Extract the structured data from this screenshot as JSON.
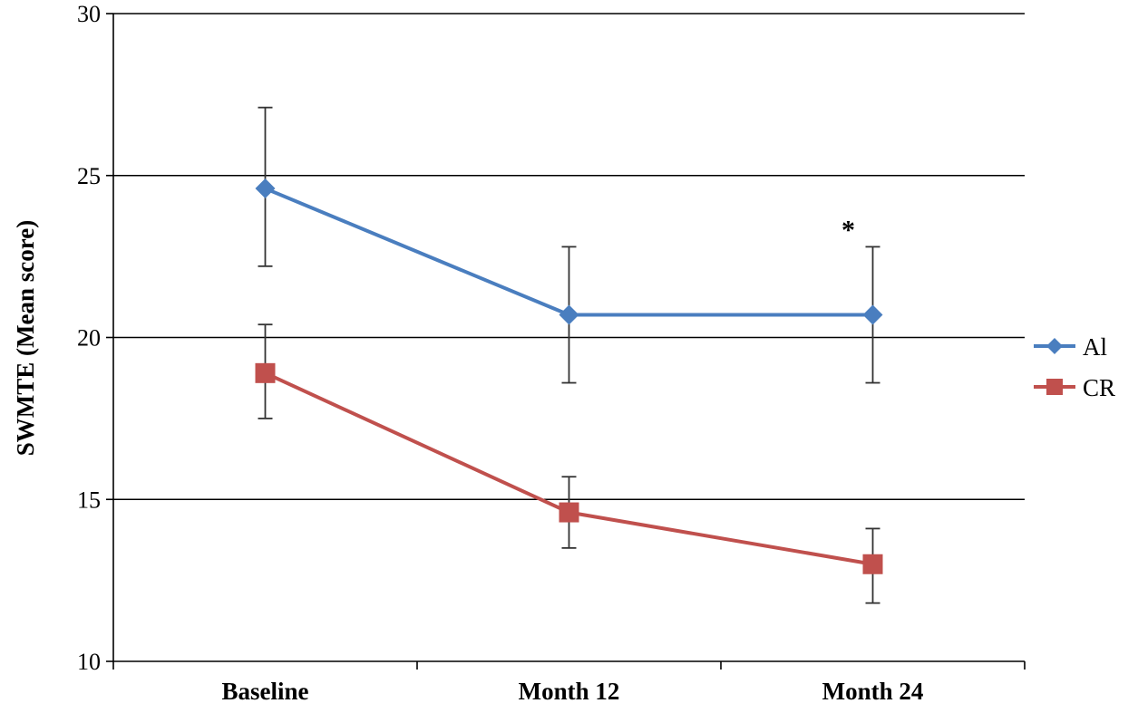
{
  "chart_data": {
    "type": "line",
    "categories": [
      "Baseline",
      "Month 12",
      "Month 24"
    ],
    "ylabel": "SWMTE (Mean score)",
    "ylim": [
      10,
      30
    ],
    "yticks": [
      10,
      15,
      20,
      25,
      30
    ],
    "grid": true,
    "legend_position": "right",
    "series": [
      {
        "name": "Al",
        "color": "#4a7ebf",
        "marker": "diamond",
        "values": [
          24.6,
          20.7,
          20.7
        ],
        "error_upper": [
          27.1,
          22.8,
          22.8
        ],
        "error_lower": [
          22.2,
          18.6,
          18.6
        ]
      },
      {
        "name": "CR",
        "color": "#c0504d",
        "marker": "square",
        "values": [
          18.9,
          14.6,
          13.0
        ],
        "error_upper": [
          20.4,
          15.7,
          14.1
        ],
        "error_lower": [
          17.5,
          13.5,
          11.8
        ]
      }
    ],
    "annotations": [
      {
        "text": "*",
        "category": "Month 24",
        "y": 23.5
      }
    ]
  }
}
